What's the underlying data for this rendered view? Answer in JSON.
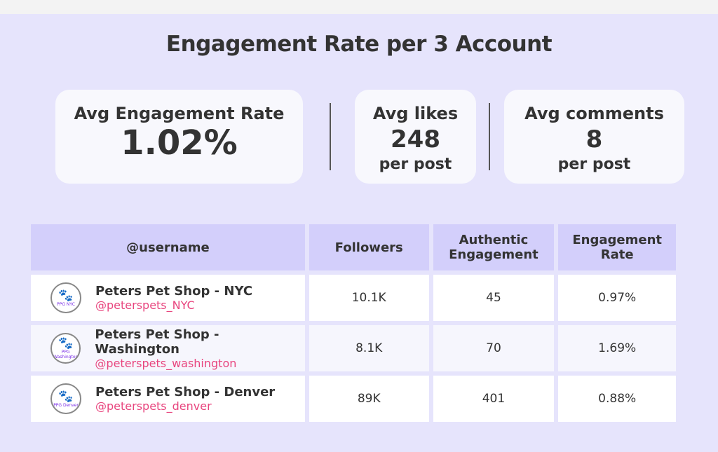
{
  "title": "Engagement Rate per 3 Account",
  "stats": {
    "engagement": {
      "label": "Avg Engagement Rate",
      "value": "1.02%"
    },
    "likes": {
      "label": "Avg likes",
      "value": "248",
      "unit": "per post"
    },
    "comments": {
      "label": "Avg comments",
      "value": "8",
      "unit": "per post"
    }
  },
  "table": {
    "headers": [
      "@username",
      "Followers",
      "Authentic Engagement",
      "Engagement Rate"
    ],
    "rows": [
      {
        "name": "Peters Pet Shop - NYC",
        "handle": "@peterspets_NYC",
        "avatar": "PPG NYC",
        "followers": "10.1K",
        "authentic": "45",
        "rate": "0.97%"
      },
      {
        "name": "Peters Pet Shop - Washington",
        "handle": "@peterspets_washington",
        "avatar": "PPG Washington",
        "followers": "8.1K",
        "authentic": "70",
        "rate": "1.69%"
      },
      {
        "name": "Peters Pet Shop - Denver",
        "handle": "@peterspets_denver",
        "avatar": "PPG Denver",
        "followers": "89K",
        "authentic": "401",
        "rate": "0.88%"
      }
    ]
  }
}
